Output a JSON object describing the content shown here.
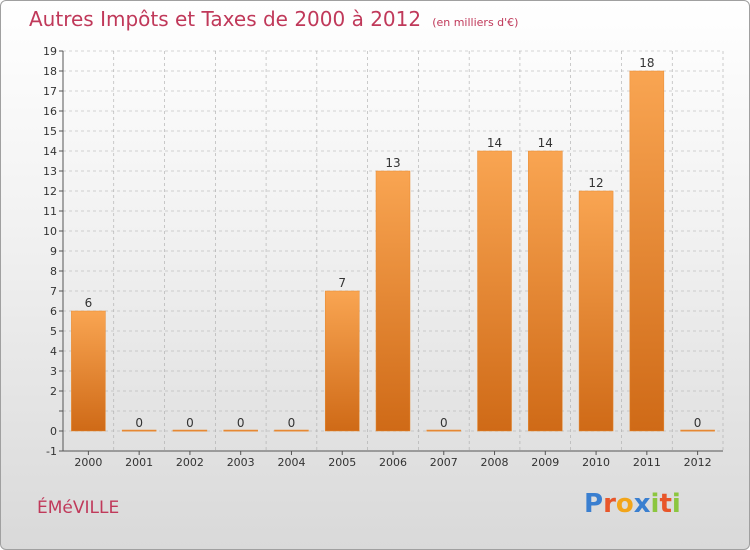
{
  "title": "Autres Impôts et Taxes de 2000 à 2012",
  "unit": "(en milliers d'€)",
  "commune": "ÉMéVILLE",
  "logo": {
    "text": "Proxiti",
    "letters": [
      {
        "ch": "P",
        "color": "#3a7fd0"
      },
      {
        "ch": "r",
        "color": "#e8562a"
      },
      {
        "ch": "o",
        "color": "#f2a51a"
      },
      {
        "ch": "x",
        "color": "#3a7fd0"
      },
      {
        "ch": "i",
        "color": "#8cc63f"
      },
      {
        "ch": "t",
        "color": "#e8562a"
      },
      {
        "ch": "i",
        "color": "#8cc63f"
      }
    ]
  },
  "colors": {
    "bar_top": "#f9a552",
    "bar_bottom": "#cf6a17",
    "title": "#c0395a",
    "grid": "#aaaaaa"
  },
  "chart_data": {
    "type": "bar",
    "categories": [
      "2000",
      "2001",
      "2002",
      "2003",
      "2004",
      "2005",
      "2006",
      "2007",
      "2008",
      "2009",
      "2010",
      "2011",
      "2012"
    ],
    "values": [
      6,
      0,
      0,
      0,
      0,
      7,
      13,
      0,
      14,
      14,
      12,
      18,
      0
    ],
    "data_labels": [
      "6",
      "0",
      "0",
      "0",
      "0",
      "7",
      "13",
      "0",
      "14",
      "14",
      "12",
      "18",
      "0"
    ],
    "ylim": [
      -1,
      19
    ],
    "y_ticks": [
      -1,
      0,
      1,
      2,
      3,
      4,
      5,
      6,
      7,
      8,
      9,
      10,
      11,
      12,
      13,
      14,
      15,
      16,
      17,
      18,
      19
    ],
    "y_tick_labels": [
      "-1",
      "0",
      "",
      "2",
      "3",
      "4",
      "5",
      "6",
      "7",
      "8",
      "9",
      "10",
      "11",
      "12",
      "13",
      "14",
      "15",
      "16",
      "17",
      "18",
      "19"
    ],
    "xlabel": "",
    "ylabel": "",
    "grid": true,
    "legend": "none"
  }
}
